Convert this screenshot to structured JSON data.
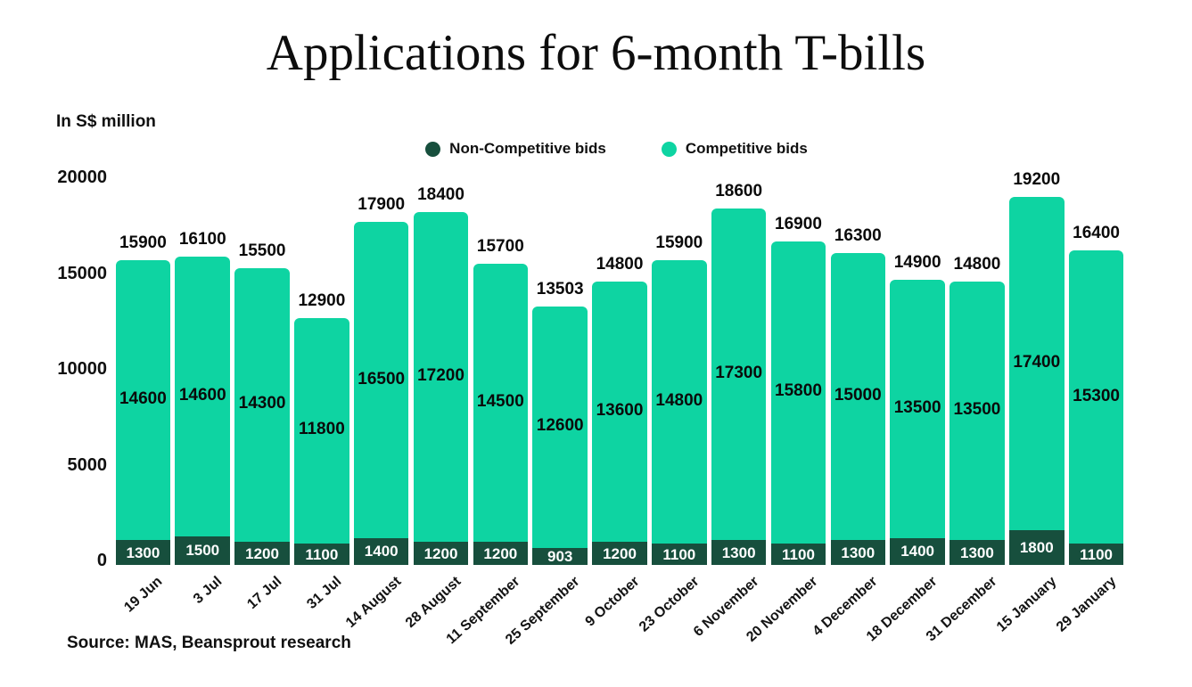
{
  "page": {
    "title": "Applications for 6-month T-bills",
    "unit_note": "In S$ million",
    "source": "Source: MAS, Beansprout research"
  },
  "colors": {
    "non_competitive": "#174f3d",
    "competitive": "#0ed4a2",
    "background": "#ffffff",
    "text": "#101010",
    "nc_label_text": "#ffffff"
  },
  "legend": {
    "items": [
      {
        "label": "Non-Competitive bids",
        "color": "#174f3d"
      },
      {
        "label": "Competitive bids",
        "color": "#0ed4a2"
      }
    ]
  },
  "chart_data": {
    "type": "bar",
    "stacked": true,
    "title": "Applications for 6-month T-bills",
    "ylabel": "In S$ million",
    "xlabel": "",
    "ylim": [
      0,
      20000
    ],
    "yticks": [
      0,
      5000,
      10000,
      15000,
      20000
    ],
    "grid": false,
    "legend_position": "top-center",
    "categories": [
      "19 Jun",
      "3 Jul",
      "17 Jul",
      "31 Jul",
      "14 August",
      "28 August",
      "11 September",
      "25 September",
      "9 October",
      "23 October",
      "6 November",
      "20 November",
      "4 December",
      "18 December",
      "31 December",
      "15 January",
      "29 January"
    ],
    "series": [
      {
        "name": "Non-Competitive bids",
        "color": "#174f3d",
        "values": [
          1300,
          1500,
          1200,
          1100,
          1400,
          1200,
          1200,
          903,
          1200,
          1100,
          1300,
          1100,
          1300,
          1400,
          1300,
          1800,
          1100
        ]
      },
      {
        "name": "Competitive bids",
        "color": "#0ed4a2",
        "values": [
          14600,
          14600,
          14300,
          11800,
          16500,
          17200,
          14500,
          12600,
          13600,
          14800,
          17300,
          15800,
          15000,
          13500,
          13500,
          17400,
          15300
        ]
      }
    ],
    "totals": [
      15900,
      16100,
      15500,
      12900,
      17900,
      18400,
      15700,
      13503,
      14800,
      15900,
      18600,
      16900,
      16300,
      14900,
      14800,
      19200,
      16400
    ]
  }
}
